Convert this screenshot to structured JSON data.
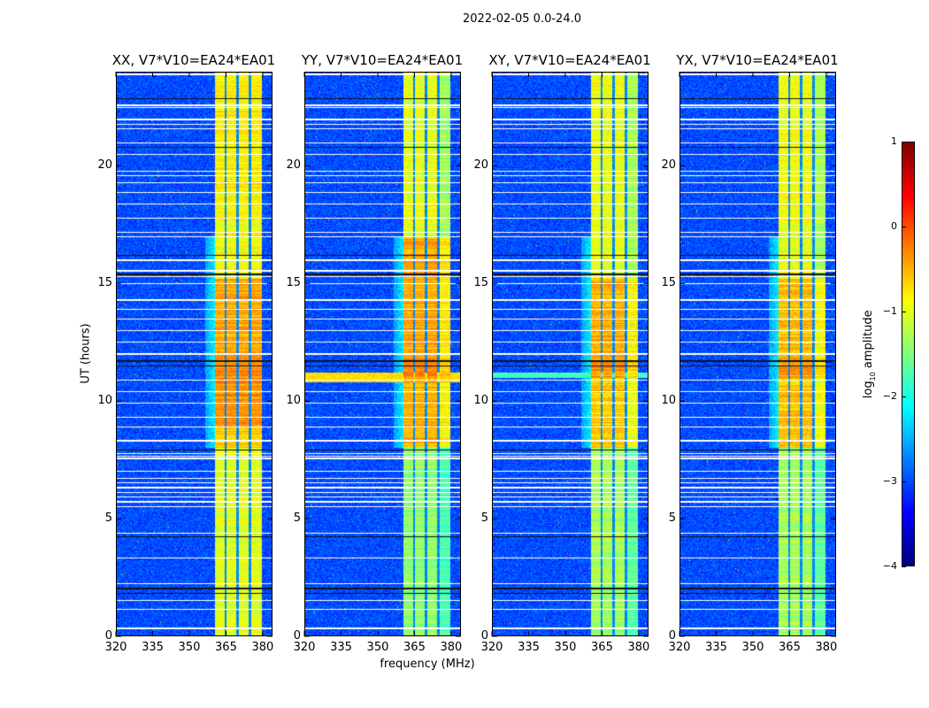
{
  "chart_data": {
    "type": "heatmap",
    "title": "2022-02-05 0.0-24.0",
    "xlabel": "frequency (MHz)",
    "ylabel": "UT (hours)",
    "xlim": [
      320,
      384
    ],
    "ylim": [
      0,
      24
    ],
    "xticks": [
      "320",
      "335",
      "350",
      "365",
      "380"
    ],
    "xtick_values": [
      320,
      335,
      350,
      365,
      380
    ],
    "yticks": [
      "0",
      "5",
      "10",
      "15",
      "20"
    ],
    "ytick_values": [
      0,
      5,
      10,
      15,
      20
    ],
    "colorbar": {
      "label_main": "log",
      "label_sub": "10",
      "label_rest": " amplitude",
      "colormap": "jet",
      "range": [
        -4,
        1
      ],
      "ticks": [
        "1",
        "0",
        "−1",
        "−2",
        "−3",
        "−4"
      ],
      "tick_values": [
        1,
        0,
        -1,
        -2,
        -3,
        -4
      ]
    },
    "band_mhz": [
      360.5,
      380
    ],
    "channel_gaps_mhz": [
      365,
      370,
      375
    ],
    "background_level": -3.0,
    "flagged_hours": [
      0.3,
      1.1,
      1.5,
      2.2,
      3.3,
      4.35,
      5.5,
      5.7,
      5.9,
      6.1,
      6.3,
      6.5,
      6.7,
      7.0,
      7.55,
      7.65,
      7.75,
      8.3,
      8.9,
      9.3,
      9.9,
      10.4,
      10.9,
      12.0,
      12.5,
      13.0,
      13.5,
      13.9,
      14.3,
      15.0,
      15.3,
      15.55,
      16.0,
      17.0,
      17.2,
      17.8,
      18.4,
      18.9,
      19.3,
      19.6,
      19.8,
      20.5,
      21.0,
      21.6,
      21.8,
      22.0,
      22.5,
      22.6,
      23.9,
      23.95
    ],
    "dark_hours": [
      1.8,
      2.0,
      4.2,
      7.9,
      11.5,
      11.7,
      15.4,
      16.2,
      20.8,
      22.9
    ],
    "panels": [
      {
        "title": "XX, V7*V10=EA24*EA01",
        "segments": [
          [
            0,
            8,
            -1.0
          ],
          [
            8,
            9,
            -0.6
          ],
          [
            9,
            12,
            -0.35
          ],
          [
            12,
            15.2,
            -0.45
          ],
          [
            15.2,
            17,
            -0.9
          ],
          [
            17,
            19,
            -0.9
          ],
          [
            19,
            24,
            -0.8
          ]
        ],
        "rfi_rows": []
      },
      {
        "title": "YY, V7*V10=EA24*EA01",
        "segments": [
          [
            0,
            8,
            -1.4
          ],
          [
            8,
            11,
            -0.5
          ],
          [
            11,
            12,
            -0.25
          ],
          [
            12,
            17,
            -0.45
          ],
          [
            17,
            24,
            -1.0
          ]
        ],
        "rfi_rows": [
          [
            10.8,
            11.2,
            -0.7
          ]
        ]
      },
      {
        "title": "XY, V7*V10=EA24*EA01",
        "segments": [
          [
            0,
            8,
            -1.3
          ],
          [
            8,
            11,
            -0.6
          ],
          [
            11,
            12,
            -0.35
          ],
          [
            12,
            15.2,
            -0.5
          ],
          [
            15.2,
            24,
            -0.95
          ]
        ],
        "rfi_rows": [
          [
            11.0,
            11.2,
            -1.8
          ]
        ]
      },
      {
        "title": "YX, V7*V10=EA24*EA01",
        "segments": [
          [
            0,
            8,
            -1.3
          ],
          [
            8,
            11,
            -0.6
          ],
          [
            11,
            12,
            -0.4
          ],
          [
            12,
            15.2,
            -0.55
          ],
          [
            15.2,
            24,
            -0.95
          ]
        ],
        "rfi_rows": []
      }
    ]
  }
}
